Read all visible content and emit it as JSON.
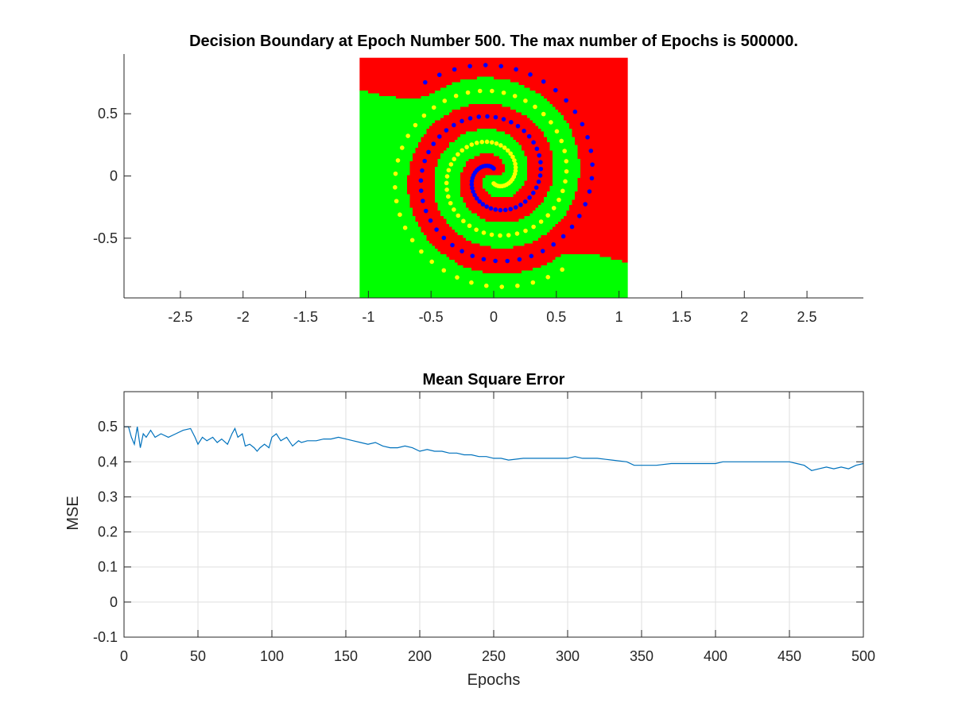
{
  "chart_data": [
    {
      "type": "scatter",
      "title": "Decision Boundary at Epoch Number 500. The max number of Epochs is 500000.",
      "xlabel": "",
      "ylabel": "",
      "xlim": [
        -2.95,
        2.95
      ],
      "ylim": [
        -0.98,
        0.98
      ],
      "xticks": [
        -2.5,
        -2,
        -1.5,
        -1,
        -0.5,
        0,
        0.5,
        1,
        1.5,
        2,
        2.5
      ],
      "yticks": [
        -0.5,
        0,
        0.5
      ],
      "xtick_labels": [
        "-2.5",
        "-2",
        "-1.5",
        "-1",
        "-0.5",
        "0",
        "0.5",
        "1",
        "1.5",
        "2",
        "2.5"
      ],
      "ytick_labels": [
        "-0.5",
        "0",
        "0.5"
      ],
      "grid": false,
      "box": false,
      "region": {
        "x_range": [
          -1.07,
          1.07
        ],
        "y_range": [
          -0.98,
          0.95
        ]
      },
      "colors": {
        "class_a_region": "#ff0000",
        "class_b_region": "#00ff00",
        "class_a_points": "#0000ff",
        "class_b_points": "#ffff00"
      },
      "series": [
        {
          "kind": "spiral",
          "color": "#0000ff",
          "points": 96,
          "turns": 2.1,
          "phase": 1.5708,
          "r_start": 0.06,
          "r_end": 0.93
        },
        {
          "kind": "spiral",
          "color": "#ffff00",
          "points": 96,
          "turns": 2.1,
          "phase": -1.5708,
          "r_start": 0.06,
          "r_end": 0.93
        }
      ]
    },
    {
      "type": "line",
      "title": "Mean Square Error",
      "xlabel": "Epochs",
      "ylabel": "MSE",
      "xlim": [
        0,
        500
      ],
      "ylim": [
        -0.1,
        0.6
      ],
      "xticks": [
        0,
        50,
        100,
        150,
        200,
        250,
        300,
        350,
        400,
        450,
        500
      ],
      "yticks": [
        -0.1,
        0,
        0.1,
        0.2,
        0.3,
        0.4,
        0.5
      ],
      "xtick_labels": [
        "0",
        "50",
        "100",
        "150",
        "200",
        "250",
        "300",
        "350",
        "400",
        "450",
        "500"
      ],
      "ytick_labels": [
        "-0.1",
        "0",
        "0.1",
        "0.2",
        "0.3",
        "0.4",
        "0.5"
      ],
      "grid": true,
      "box": true,
      "series": [
        {
          "color": "#0072bd",
          "x": [
            0,
            3,
            5,
            7,
            9,
            11,
            13,
            15,
            18,
            21,
            25,
            30,
            35,
            40,
            45,
            48,
            50,
            53,
            56,
            60,
            63,
            66,
            70,
            73,
            75,
            77,
            80,
            82,
            85,
            88,
            90,
            92,
            95,
            98,
            100,
            103,
            106,
            110,
            114,
            118,
            120,
            124,
            130,
            135,
            140,
            145,
            150,
            155,
            160,
            165,
            170,
            175,
            180,
            185,
            190,
            195,
            200,
            205,
            210,
            215,
            220,
            225,
            230,
            235,
            240,
            245,
            250,
            255,
            260,
            270,
            280,
            290,
            300,
            305,
            310,
            320,
            330,
            340,
            345,
            350,
            360,
            370,
            380,
            390,
            400,
            405,
            410,
            420,
            430,
            440,
            450,
            455,
            460,
            465,
            470,
            475,
            480,
            485,
            490,
            495,
            500
          ],
          "y": [
            0.5,
            0.5,
            0.47,
            0.45,
            0.5,
            0.44,
            0.48,
            0.47,
            0.49,
            0.47,
            0.48,
            0.47,
            0.48,
            0.49,
            0.495,
            0.47,
            0.45,
            0.47,
            0.46,
            0.47,
            0.455,
            0.465,
            0.45,
            0.48,
            0.495,
            0.47,
            0.48,
            0.445,
            0.45,
            0.44,
            0.43,
            0.44,
            0.45,
            0.44,
            0.47,
            0.48,
            0.46,
            0.47,
            0.445,
            0.46,
            0.455,
            0.46,
            0.46,
            0.465,
            0.465,
            0.47,
            0.465,
            0.46,
            0.455,
            0.45,
            0.455,
            0.445,
            0.44,
            0.44,
            0.445,
            0.44,
            0.43,
            0.435,
            0.43,
            0.43,
            0.425,
            0.425,
            0.42,
            0.42,
            0.415,
            0.415,
            0.41,
            0.41,
            0.405,
            0.41,
            0.41,
            0.41,
            0.41,
            0.415,
            0.41,
            0.41,
            0.405,
            0.4,
            0.39,
            0.39,
            0.39,
            0.395,
            0.395,
            0.395,
            0.395,
            0.4,
            0.4,
            0.4,
            0.4,
            0.4,
            0.4,
            0.395,
            0.39,
            0.375,
            0.38,
            0.385,
            0.38,
            0.385,
            0.38,
            0.39,
            0.395
          ]
        }
      ]
    }
  ]
}
